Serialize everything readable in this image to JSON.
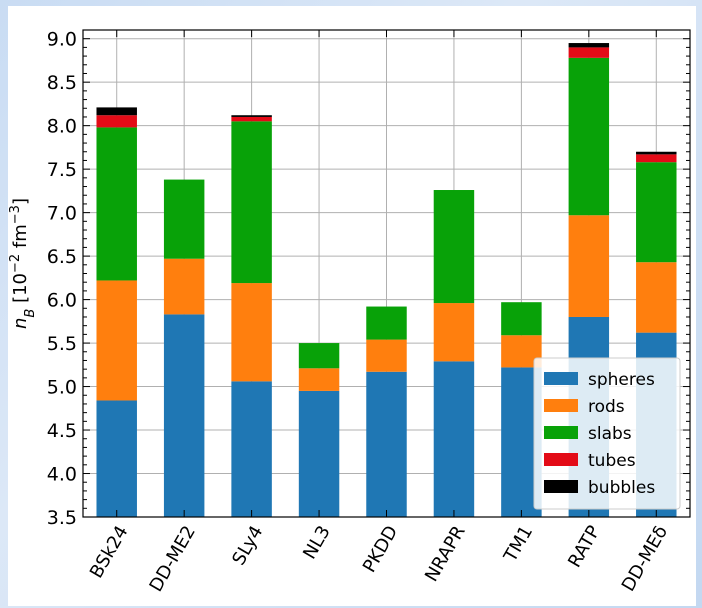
{
  "chart_data": {
    "type": "bar",
    "stacked": true,
    "categories": [
      "BSk24",
      "DD-ME2",
      "SLy4",
      "NL3",
      "PKDD",
      "NRAPR",
      "TM1",
      "RATP",
      "DD-MEδ"
    ],
    "ylabel_text": "n",
    "ylabel_sub": "B",
    "ylabel_unit": "[10",
    "ylabel_exp": "−2",
    "ylabel_unit2": " fm",
    "ylabel_exp2": "−3",
    "ylabel_close": "]",
    "ylim": [
      3.5,
      9.1
    ],
    "yticks": [
      "3.5",
      "4.0",
      "4.5",
      "5.0",
      "5.5",
      "6.0",
      "6.5",
      "7.0",
      "7.5",
      "8.0",
      "8.5",
      "9.0"
    ],
    "grid": true,
    "legend_position": "bottom-right",
    "series": [
      {
        "name": "spheres",
        "color": "#1f77b4",
        "bottoms": [
          3.5,
          3.5,
          3.5,
          3.5,
          3.5,
          3.5,
          3.5,
          3.5,
          3.5
        ],
        "tops": [
          4.84,
          5.83,
          5.06,
          4.95,
          5.17,
          5.29,
          5.22,
          5.8,
          5.62
        ]
      },
      {
        "name": "rods",
        "color": "#ff7f0e",
        "bottoms": [
          4.84,
          5.83,
          5.06,
          4.95,
          5.17,
          5.29,
          5.22,
          5.8,
          5.62
        ],
        "tops": [
          6.22,
          6.47,
          6.19,
          5.21,
          5.54,
          5.96,
          5.59,
          6.97,
          6.43
        ]
      },
      {
        "name": "slabs",
        "color": "#08a208",
        "bottoms": [
          6.22,
          6.47,
          6.19,
          5.21,
          5.54,
          5.96,
          5.59,
          6.97,
          6.43
        ],
        "tops": [
          7.98,
          7.38,
          8.05,
          5.5,
          5.92,
          7.26,
          5.97,
          8.78,
          7.58
        ]
      },
      {
        "name": "tubes",
        "color": "#e30b17",
        "bottoms": [
          7.98,
          7.38,
          8.05,
          5.5,
          5.92,
          7.26,
          5.97,
          8.78,
          7.58
        ],
        "tops": [
          8.12,
          7.38,
          8.1,
          5.5,
          5.92,
          7.26,
          5.97,
          8.9,
          7.67
        ]
      },
      {
        "name": "bubbles",
        "color": "#000000",
        "bottoms": [
          8.12,
          7.38,
          8.1,
          5.5,
          5.92,
          7.26,
          5.97,
          8.9,
          7.67
        ],
        "tops": [
          8.21,
          7.38,
          8.12,
          5.5,
          5.92,
          7.26,
          5.97,
          8.95,
          7.7
        ]
      }
    ]
  }
}
